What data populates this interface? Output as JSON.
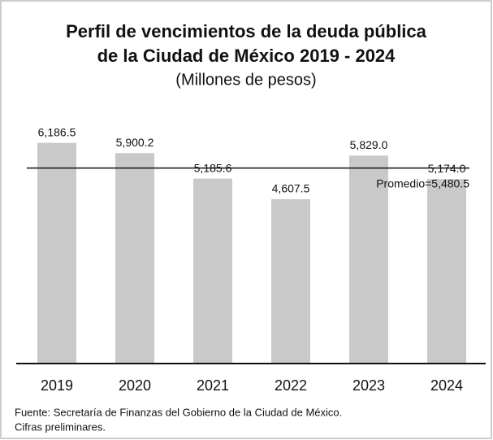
{
  "chart_data": {
    "type": "bar",
    "title": [
      "Perfil de vencimientos de la deuda pública",
      "de la Ciudad de México 2019 - 2024"
    ],
    "subtitle": "(Millones de pesos)",
    "categories": [
      "2019",
      "2020",
      "2021",
      "2022",
      "2023",
      "2024"
    ],
    "values": [
      6186.5,
      5900.2,
      5185.6,
      4607.5,
      5829.0,
      5174.0
    ],
    "value_labels": [
      "6,186.5",
      "5,900.2",
      "5,185.6",
      "4,607.5",
      "5,829.0",
      "5,174.0"
    ],
    "color": "#c9c9c9",
    "ylim": [
      0,
      7000
    ],
    "average": {
      "value": 5480.5,
      "label": "Promedio=5,480.5"
    },
    "source": [
      "Fuente: Secretaría de Finanzas del Gobierno de la Ciudad de  México.",
      "Cifras preliminares."
    ]
  }
}
